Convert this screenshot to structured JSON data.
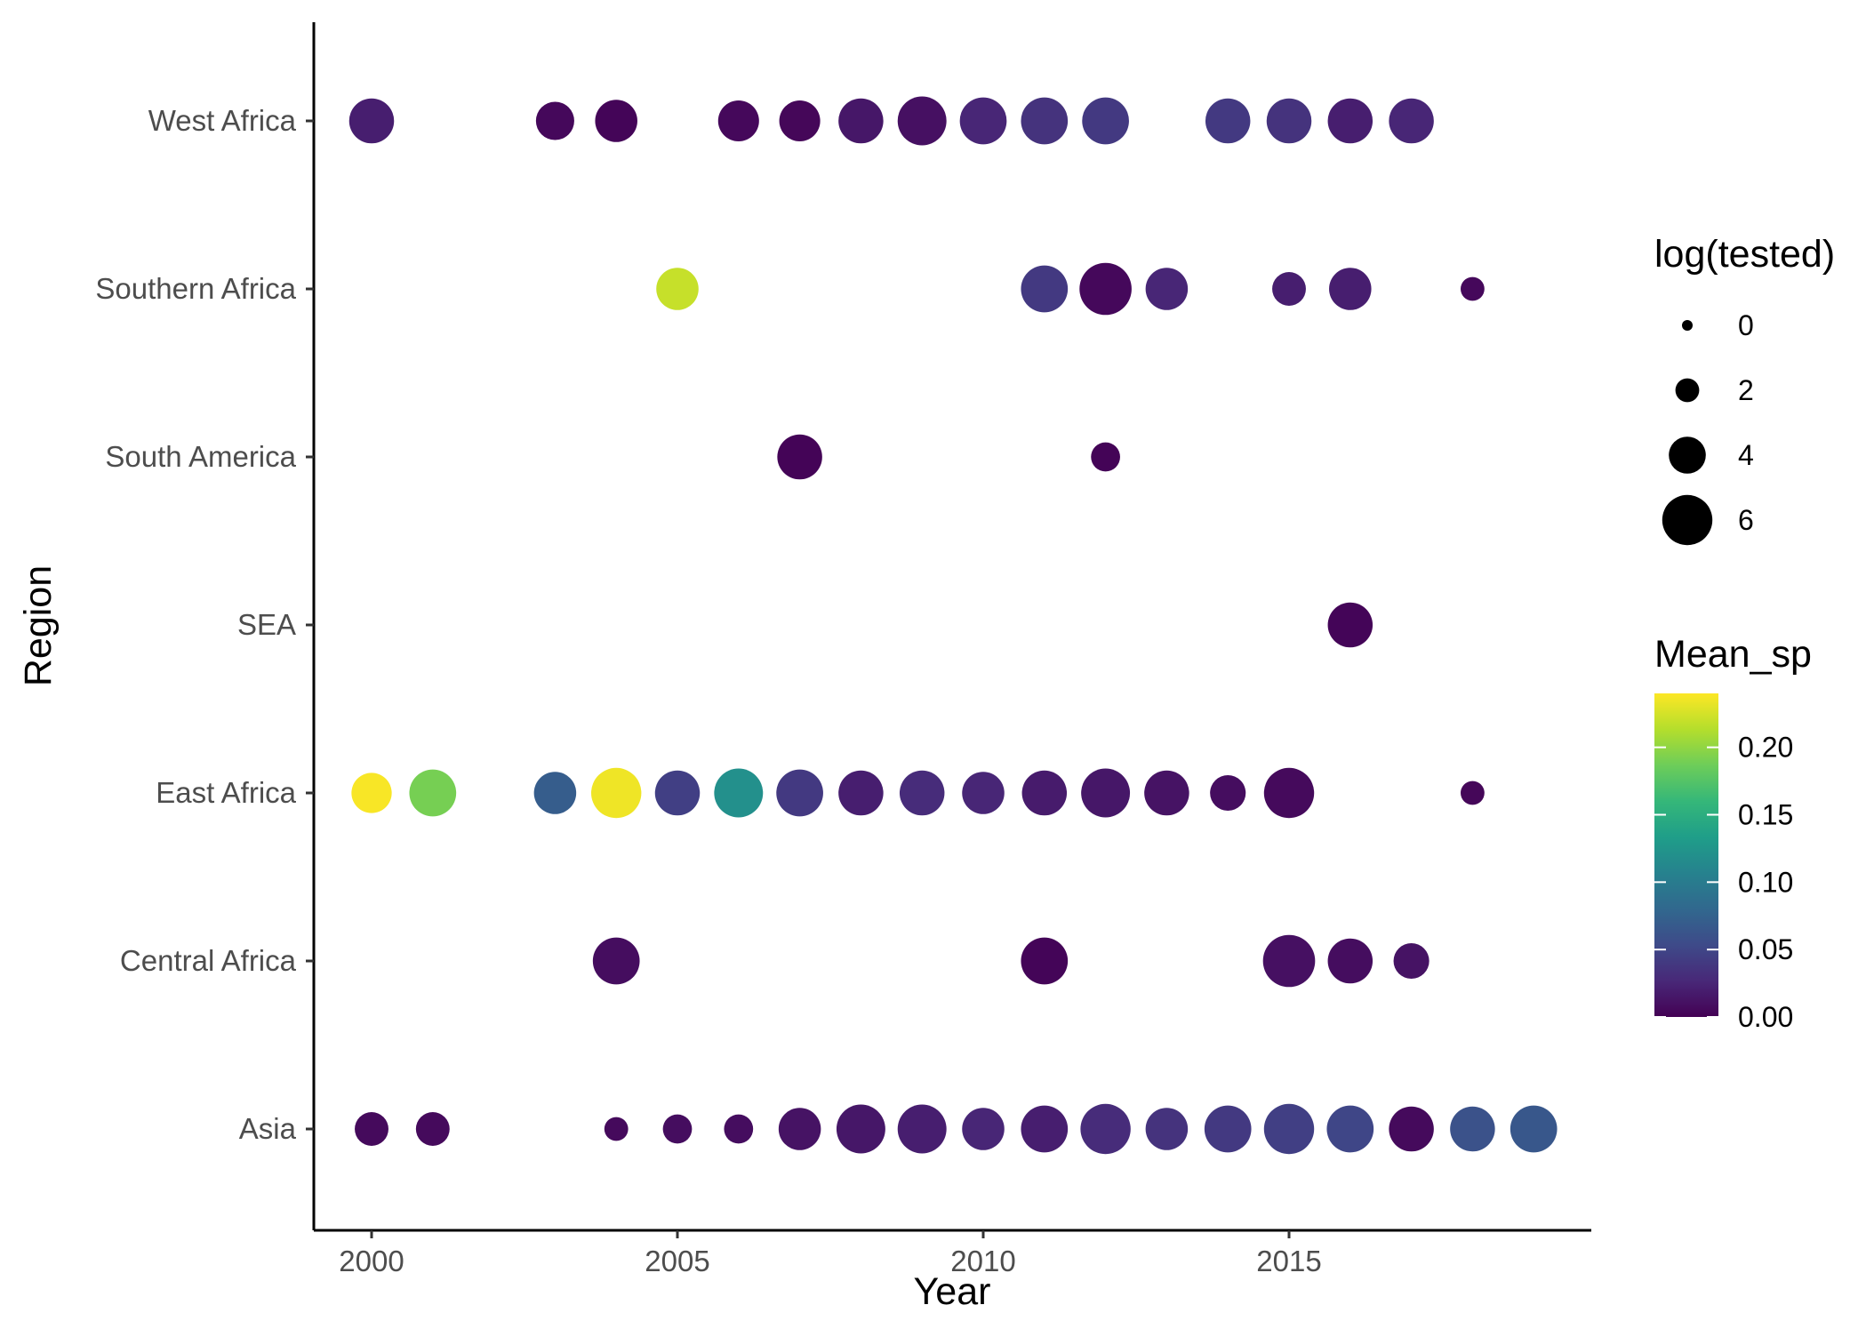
{
  "chart_data": {
    "type": "scatter",
    "title": "",
    "xlabel": "Year",
    "ylabel": "Region",
    "xlim": [
      1999,
      2020
    ],
    "x_ticks": [
      "2000",
      "2005",
      "2010",
      "2015"
    ],
    "y_categories": [
      "Asia",
      "Central Africa",
      "East Africa",
      "SEA",
      "South America",
      "Southern Africa",
      "West Africa"
    ],
    "size_legend": {
      "title": "log(tested)",
      "values": [
        "0",
        "2",
        "4",
        "6"
      ]
    },
    "color_legend": {
      "title": "Mean_sp",
      "ticks": [
        "0.00",
        "0.05",
        "0.10",
        "0.15",
        "0.20"
      ],
      "range": [
        0,
        0.24
      ],
      "palette": "viridis"
    },
    "grid": false,
    "legend_position": "right",
    "points": [
      {
        "region": "West Africa",
        "year": 2000,
        "size": 5.2,
        "mean_sp": 0.02
      },
      {
        "region": "West Africa",
        "year": 2003,
        "size": 4.2,
        "mean_sp": 0.005
      },
      {
        "region": "West Africa",
        "year": 2004,
        "size": 4.8,
        "mean_sp": 0.003
      },
      {
        "region": "West Africa",
        "year": 2006,
        "size": 4.6,
        "mean_sp": 0.005
      },
      {
        "region": "West Africa",
        "year": 2007,
        "size": 4.6,
        "mean_sp": 0.004
      },
      {
        "region": "West Africa",
        "year": 2008,
        "size": 5.2,
        "mean_sp": 0.015
      },
      {
        "region": "West Africa",
        "year": 2009,
        "size": 5.8,
        "mean_sp": 0.01
      },
      {
        "region": "West Africa",
        "year": 2010,
        "size": 5.5,
        "mean_sp": 0.025
      },
      {
        "region": "West Africa",
        "year": 2011,
        "size": 5.5,
        "mean_sp": 0.035
      },
      {
        "region": "West Africa",
        "year": 2012,
        "size": 5.5,
        "mean_sp": 0.04
      },
      {
        "region": "West Africa",
        "year": 2014,
        "size": 5.2,
        "mean_sp": 0.04
      },
      {
        "region": "West Africa",
        "year": 2015,
        "size": 5.2,
        "mean_sp": 0.035
      },
      {
        "region": "West Africa",
        "year": 2016,
        "size": 5.2,
        "mean_sp": 0.02
      },
      {
        "region": "West Africa",
        "year": 2017,
        "size": 5.2,
        "mean_sp": 0.025
      },
      {
        "region": "Southern Africa",
        "year": 2005,
        "size": 4.8,
        "mean_sp": 0.22
      },
      {
        "region": "Southern Africa",
        "year": 2011,
        "size": 5.5,
        "mean_sp": 0.04
      },
      {
        "region": "Southern Africa",
        "year": 2012,
        "size": 6.3,
        "mean_sp": 0.005
      },
      {
        "region": "Southern Africa",
        "year": 2013,
        "size": 4.8,
        "mean_sp": 0.025
      },
      {
        "region": "Southern Africa",
        "year": 2015,
        "size": 3.5,
        "mean_sp": 0.02
      },
      {
        "region": "Southern Africa",
        "year": 2016,
        "size": 4.8,
        "mean_sp": 0.02
      },
      {
        "region": "Southern Africa",
        "year": 2018,
        "size": 2.0,
        "mean_sp": 0.005
      },
      {
        "region": "South America",
        "year": 2007,
        "size": 5.2,
        "mean_sp": 0.002
      },
      {
        "region": "South America",
        "year": 2012,
        "size": 2.8,
        "mean_sp": 0.002
      },
      {
        "region": "SEA",
        "year": 2016,
        "size": 5.2,
        "mean_sp": 0.003
      },
      {
        "region": "East Africa",
        "year": 2000,
        "size": 4.5,
        "mean_sp": 0.238
      },
      {
        "region": "East Africa",
        "year": 2001,
        "size": 5.5,
        "mean_sp": 0.19
      },
      {
        "region": "East Africa",
        "year": 2003,
        "size": 4.8,
        "mean_sp": 0.07
      },
      {
        "region": "East Africa",
        "year": 2004,
        "size": 6.0,
        "mean_sp": 0.235
      },
      {
        "region": "East Africa",
        "year": 2005,
        "size": 5.2,
        "mean_sp": 0.045
      },
      {
        "region": "East Africa",
        "year": 2006,
        "size": 5.8,
        "mean_sp": 0.12
      },
      {
        "region": "East Africa",
        "year": 2007,
        "size": 5.5,
        "mean_sp": 0.04
      },
      {
        "region": "East Africa",
        "year": 2008,
        "size": 5.2,
        "mean_sp": 0.02
      },
      {
        "region": "East Africa",
        "year": 2009,
        "size": 5.2,
        "mean_sp": 0.03
      },
      {
        "region": "East Africa",
        "year": 2010,
        "size": 4.8,
        "mean_sp": 0.025
      },
      {
        "region": "East Africa",
        "year": 2011,
        "size": 5.2,
        "mean_sp": 0.018
      },
      {
        "region": "East Africa",
        "year": 2012,
        "size": 5.8,
        "mean_sp": 0.015
      },
      {
        "region": "East Africa",
        "year": 2013,
        "size": 5.2,
        "mean_sp": 0.012
      },
      {
        "region": "East Africa",
        "year": 2014,
        "size": 3.8,
        "mean_sp": 0.008
      },
      {
        "region": "East Africa",
        "year": 2015,
        "size": 6.0,
        "mean_sp": 0.006
      },
      {
        "region": "East Africa",
        "year": 2018,
        "size": 2.0,
        "mean_sp": 0.004
      },
      {
        "region": "Central Africa",
        "year": 2004,
        "size": 5.5,
        "mean_sp": 0.008
      },
      {
        "region": "Central Africa",
        "year": 2011,
        "size": 5.5,
        "mean_sp": 0.003
      },
      {
        "region": "Central Africa",
        "year": 2015,
        "size": 6.3,
        "mean_sp": 0.01
      },
      {
        "region": "Central Africa",
        "year": 2016,
        "size": 5.2,
        "mean_sp": 0.008
      },
      {
        "region": "Central Africa",
        "year": 2017,
        "size": 3.8,
        "mean_sp": 0.012
      },
      {
        "region": "Asia",
        "year": 2000,
        "size": 3.5,
        "mean_sp": 0.006
      },
      {
        "region": "Asia",
        "year": 2001,
        "size": 3.5,
        "mean_sp": 0.006
      },
      {
        "region": "Asia",
        "year": 2004,
        "size": 2.0,
        "mean_sp": 0.006
      },
      {
        "region": "Asia",
        "year": 2005,
        "size": 2.8,
        "mean_sp": 0.008
      },
      {
        "region": "Asia",
        "year": 2006,
        "size": 2.8,
        "mean_sp": 0.008
      },
      {
        "region": "Asia",
        "year": 2007,
        "size": 4.8,
        "mean_sp": 0.012
      },
      {
        "region": "Asia",
        "year": 2008,
        "size": 5.8,
        "mean_sp": 0.015
      },
      {
        "region": "Asia",
        "year": 2009,
        "size": 5.8,
        "mean_sp": 0.02
      },
      {
        "region": "Asia",
        "year": 2010,
        "size": 4.8,
        "mean_sp": 0.025
      },
      {
        "region": "Asia",
        "year": 2011,
        "size": 5.5,
        "mean_sp": 0.02
      },
      {
        "region": "Asia",
        "year": 2012,
        "size": 6.0,
        "mean_sp": 0.03
      },
      {
        "region": "Asia",
        "year": 2013,
        "size": 4.8,
        "mean_sp": 0.035
      },
      {
        "region": "Asia",
        "year": 2014,
        "size": 5.5,
        "mean_sp": 0.04
      },
      {
        "region": "Asia",
        "year": 2015,
        "size": 6.0,
        "mean_sp": 0.045
      },
      {
        "region": "Asia",
        "year": 2016,
        "size": 5.5,
        "mean_sp": 0.05
      },
      {
        "region": "Asia",
        "year": 2017,
        "size": 5.2,
        "mean_sp": 0.006
      },
      {
        "region": "Asia",
        "year": 2018,
        "size": 5.2,
        "mean_sp": 0.06
      },
      {
        "region": "Asia",
        "year": 2019,
        "size": 5.5,
        "mean_sp": 0.065
      }
    ]
  },
  "colors": {
    "viridis_stops": [
      "#440154",
      "#482878",
      "#3E4A89",
      "#31688E",
      "#26828E",
      "#1F9E89",
      "#35B779",
      "#6DCD59",
      "#B4DE2C",
      "#FDE725"
    ],
    "axis": "#000000",
    "tick_text": "#4d4d4d"
  }
}
